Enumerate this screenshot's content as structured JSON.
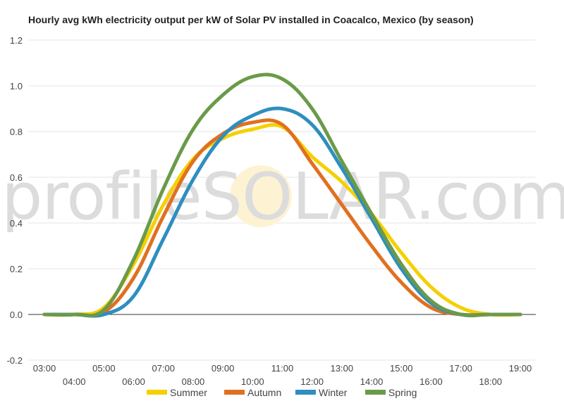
{
  "chart_data": {
    "type": "line",
    "title": "Hourly avg kWh electricity output per kW of Solar PV installed in Coacalco, Mexico (by season)",
    "xlabel": "",
    "ylabel": "",
    "ylim": [
      -0.2,
      1.2
    ],
    "yticks": [
      "-0.2",
      "0.0",
      "0.2",
      "0.4",
      "0.6",
      "0.8",
      "1.0",
      "1.2"
    ],
    "ytick_values": [
      -0.2,
      0,
      0.2,
      0.4,
      0.6,
      0.8,
      1.0,
      1.2
    ],
    "x": [
      "03:00",
      "04:00",
      "05:00",
      "06:00",
      "07:00",
      "08:00",
      "09:00",
      "10:00",
      "11:00",
      "12:00",
      "13:00",
      "14:00",
      "15:00",
      "16:00",
      "17:00",
      "18:00",
      "19:00"
    ],
    "grid": true,
    "legend_position": "bottom",
    "watermark": "profileSOLAR.com",
    "series": [
      {
        "name": "Summer",
        "color": "#f5d000",
        "values": [
          0.0,
          0.0,
          0.03,
          0.22,
          0.48,
          0.68,
          0.77,
          0.81,
          0.82,
          0.69,
          0.58,
          0.44,
          0.27,
          0.12,
          0.03,
          0.0,
          0.0
        ]
      },
      {
        "name": "Autumn",
        "color": "#e07020",
        "values": [
          0.0,
          0.0,
          0.01,
          0.16,
          0.43,
          0.67,
          0.79,
          0.84,
          0.83,
          0.66,
          0.48,
          0.3,
          0.14,
          0.03,
          0.0,
          0.0,
          0.0
        ]
      },
      {
        "name": "Winter",
        "color": "#2e8ec0",
        "values": [
          0.0,
          0.0,
          0.0,
          0.08,
          0.33,
          0.59,
          0.78,
          0.87,
          0.9,
          0.83,
          0.64,
          0.42,
          0.2,
          0.05,
          0.0,
          0.0,
          0.0
        ]
      },
      {
        "name": "Spring",
        "color": "#6a9a4a",
        "values": [
          0.0,
          0.0,
          0.02,
          0.24,
          0.55,
          0.81,
          0.96,
          1.04,
          1.03,
          0.9,
          0.67,
          0.44,
          0.22,
          0.06,
          0.0,
          0.0,
          0.0
        ]
      }
    ]
  }
}
